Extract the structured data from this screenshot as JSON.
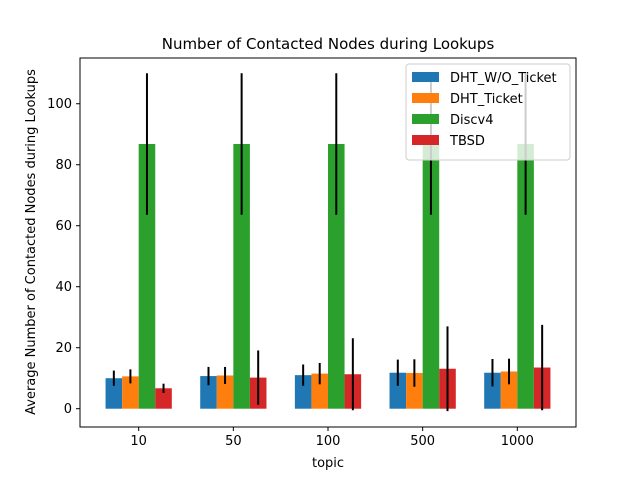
{
  "chart_data": {
    "type": "bar",
    "title": "Number of Contacted Nodes during Lookups",
    "xlabel": "topic",
    "ylabel": "Average Number of Contacted Nodes during Lookups",
    "categories": [
      "10",
      "50",
      "100",
      "500",
      "1000"
    ],
    "ylim": [
      -6,
      115
    ],
    "yticks": [
      0,
      20,
      40,
      60,
      80,
      100
    ],
    "grid": false,
    "legend_position": "top-right",
    "series": [
      {
        "name": "DHT_W/O_Ticket",
        "color": "#1f77b4",
        "values": [
          10.0,
          10.7,
          11.0,
          11.8,
          11.8
        ],
        "errors": [
          2.5,
          3.0,
          3.5,
          4.3,
          4.5
        ]
      },
      {
        "name": "DHT_Ticket",
        "color": "#ff7f0e",
        "values": [
          10.6,
          10.9,
          11.5,
          11.7,
          12.2
        ],
        "errors": [
          2.3,
          2.8,
          3.5,
          4.5,
          4.2
        ]
      },
      {
        "name": "Discv4",
        "color": "#2ca02c",
        "values": [
          86.8,
          86.8,
          86.8,
          86.8,
          86.8
        ],
        "errors": [
          23.2,
          23.2,
          23.2,
          23.2,
          23.2
        ]
      },
      {
        "name": "TBSD",
        "color": "#d62728",
        "values": [
          6.7,
          10.2,
          11.3,
          13.1,
          13.5
        ],
        "errors": [
          1.5,
          8.9,
          11.8,
          13.9,
          14.0
        ]
      }
    ]
  }
}
